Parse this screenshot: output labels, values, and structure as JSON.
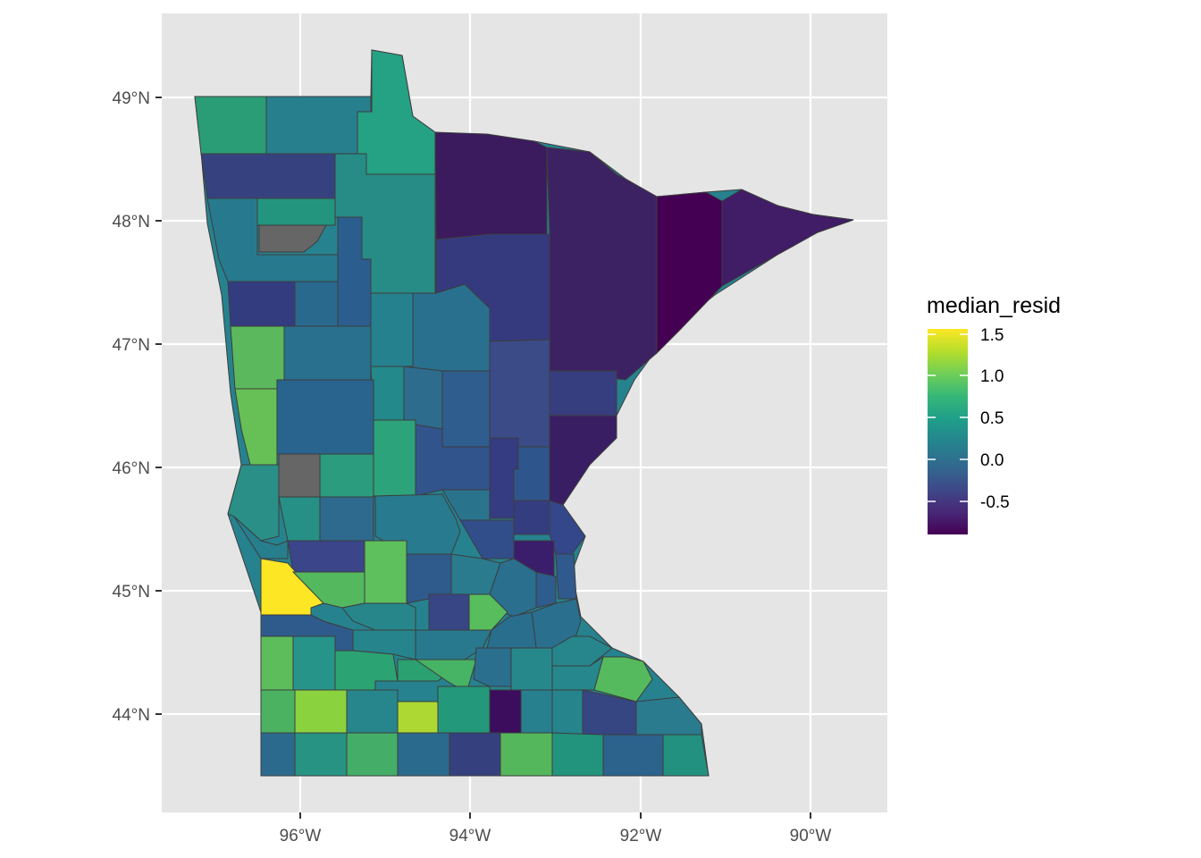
{
  "axes": {
    "x_ticks": [
      "96°W",
      "94°W",
      "92°W",
      "90°W"
    ],
    "y_ticks": [
      "49°N",
      "48°N",
      "47°N",
      "46°N",
      "45°N",
      "44°N"
    ]
  },
  "legend": {
    "title": "median_resid",
    "labels": [
      "1.5",
      "1.0",
      "0.5",
      "0.0",
      "-0.5"
    ],
    "colors": {
      "max": "#fde725",
      "c1": "#b5de2b",
      "c2": "#6ece58",
      "c3": "#35b779",
      "c4": "#1f9e89",
      "c5": "#26828e",
      "c6": "#31688e",
      "c7": "#3e4989",
      "c8": "#482878",
      "min": "#440154"
    }
  },
  "map_data": {
    "type": "choropleth",
    "region": "Minnesota counties",
    "fill_variable": "median_resid",
    "value_range": [
      -0.85,
      1.55
    ],
    "na_color": "#666666",
    "palette": "viridis"
  }
}
